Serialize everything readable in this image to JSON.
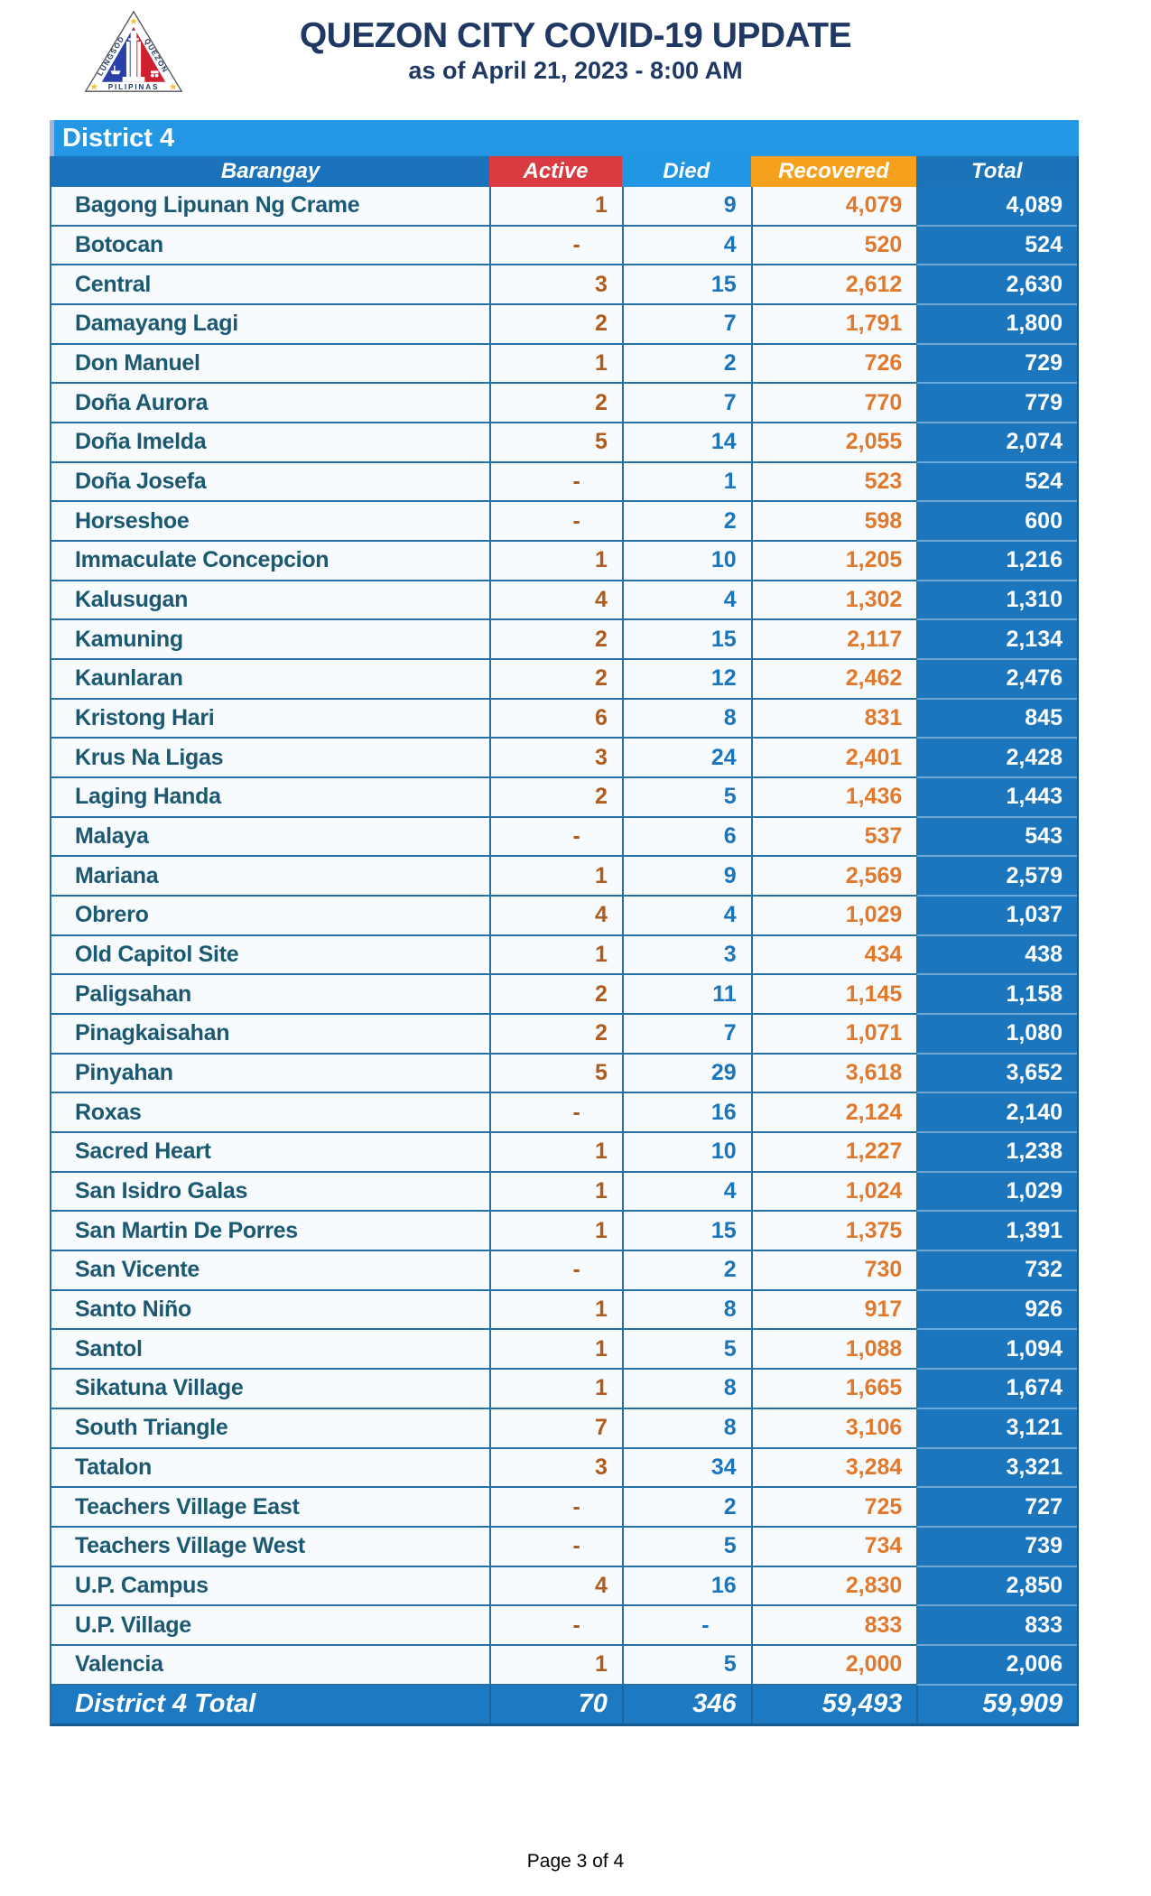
{
  "header": {
    "title": "QUEZON CITY COVID-19 UPDATE",
    "subtitle": "as of April 21, 2023 - 8:00 AM",
    "logo": {
      "name": "quezon-city-seal",
      "text_left": "LUNGSOD",
      "text_right": "QUEZON",
      "text_bottom": "PILIPINAS"
    }
  },
  "colors": {
    "title_navy": "#1F3864",
    "district_bar_blue": "#2397E4",
    "header_blue": "#1B74BB",
    "active_red": "#D93B40",
    "died_blue": "#2196E3",
    "recovered_orange": "#F5A11D",
    "total_blue": "#1C76BE",
    "active_text": "#B05C1E",
    "died_text": "#1B75BC",
    "recovered_text": "#E2782A",
    "barangay_text": "#1B5872"
  },
  "table": {
    "district_label": "District 4",
    "columns": {
      "barangay": "Barangay",
      "active": "Active",
      "died": "Died",
      "recovered": "Recovered",
      "total": "Total"
    },
    "rows": [
      {
        "name": "Bagong Lipunan Ng Crame",
        "active": "1",
        "died": "9",
        "recovered": "4,079",
        "total": "4,089"
      },
      {
        "name": "Botocan",
        "active": "-",
        "died": "4",
        "recovered": "520",
        "total": "524"
      },
      {
        "name": "Central",
        "active": "3",
        "died": "15",
        "recovered": "2,612",
        "total": "2,630"
      },
      {
        "name": "Damayang Lagi",
        "active": "2",
        "died": "7",
        "recovered": "1,791",
        "total": "1,800"
      },
      {
        "name": "Don Manuel",
        "active": "1",
        "died": "2",
        "recovered": "726",
        "total": "729"
      },
      {
        "name": "Doña Aurora",
        "active": "2",
        "died": "7",
        "recovered": "770",
        "total": "779"
      },
      {
        "name": "Doña Imelda",
        "active": "5",
        "died": "14",
        "recovered": "2,055",
        "total": "2,074"
      },
      {
        "name": "Doña Josefa",
        "active": "-",
        "died": "1",
        "recovered": "523",
        "total": "524"
      },
      {
        "name": "Horseshoe",
        "active": "-",
        "died": "2",
        "recovered": "598",
        "total": "600"
      },
      {
        "name": "Immaculate Concepcion",
        "active": "1",
        "died": "10",
        "recovered": "1,205",
        "total": "1,216"
      },
      {
        "name": "Kalusugan",
        "active": "4",
        "died": "4",
        "recovered": "1,302",
        "total": "1,310"
      },
      {
        "name": "Kamuning",
        "active": "2",
        "died": "15",
        "recovered": "2,117",
        "total": "2,134"
      },
      {
        "name": "Kaunlaran",
        "active": "2",
        "died": "12",
        "recovered": "2,462",
        "total": "2,476"
      },
      {
        "name": "Kristong Hari",
        "active": "6",
        "died": "8",
        "recovered": "831",
        "total": "845"
      },
      {
        "name": "Krus Na Ligas",
        "active": "3",
        "died": "24",
        "recovered": "2,401",
        "total": "2,428"
      },
      {
        "name": "Laging Handa",
        "active": "2",
        "died": "5",
        "recovered": "1,436",
        "total": "1,443"
      },
      {
        "name": "Malaya",
        "active": "-",
        "died": "6",
        "recovered": "537",
        "total": "543"
      },
      {
        "name": "Mariana",
        "active": "1",
        "died": "9",
        "recovered": "2,569",
        "total": "2,579"
      },
      {
        "name": "Obrero",
        "active": "4",
        "died": "4",
        "recovered": "1,029",
        "total": "1,037"
      },
      {
        "name": "Old Capitol Site",
        "active": "1",
        "died": "3",
        "recovered": "434",
        "total": "438"
      },
      {
        "name": "Paligsahan",
        "active": "2",
        "died": "11",
        "recovered": "1,145",
        "total": "1,158"
      },
      {
        "name": "Pinagkaisahan",
        "active": "2",
        "died": "7",
        "recovered": "1,071",
        "total": "1,080"
      },
      {
        "name": "Pinyahan",
        "active": "5",
        "died": "29",
        "recovered": "3,618",
        "total": "3,652"
      },
      {
        "name": "Roxas",
        "active": "-",
        "died": "16",
        "recovered": "2,124",
        "total": "2,140"
      },
      {
        "name": "Sacred Heart",
        "active": "1",
        "died": "10",
        "recovered": "1,227",
        "total": "1,238"
      },
      {
        "name": "San Isidro Galas",
        "active": "1",
        "died": "4",
        "recovered": "1,024",
        "total": "1,029"
      },
      {
        "name": "San Martin De Porres",
        "active": "1",
        "died": "15",
        "recovered": "1,375",
        "total": "1,391"
      },
      {
        "name": "San Vicente",
        "active": "-",
        "died": "2",
        "recovered": "730",
        "total": "732"
      },
      {
        "name": "Santo Niño",
        "active": "1",
        "died": "8",
        "recovered": "917",
        "total": "926"
      },
      {
        "name": "Santol",
        "active": "1",
        "died": "5",
        "recovered": "1,088",
        "total": "1,094"
      },
      {
        "name": "Sikatuna Village",
        "active": "1",
        "died": "8",
        "recovered": "1,665",
        "total": "1,674"
      },
      {
        "name": "South Triangle",
        "active": "7",
        "died": "8",
        "recovered": "3,106",
        "total": "3,121"
      },
      {
        "name": "Tatalon",
        "active": "3",
        "died": "34",
        "recovered": "3,284",
        "total": "3,321"
      },
      {
        "name": "Teachers Village East",
        "active": "-",
        "died": "2",
        "recovered": "725",
        "total": "727"
      },
      {
        "name": "Teachers Village West",
        "active": "-",
        "died": "5",
        "recovered": "734",
        "total": "739"
      },
      {
        "name": "U.P. Campus",
        "active": "4",
        "died": "16",
        "recovered": "2,830",
        "total": "2,850"
      },
      {
        "name": "U.P. Village",
        "active": "-",
        "died": "-",
        "recovered": "833",
        "total": "833"
      },
      {
        "name": "Valencia",
        "active": "1",
        "died": "5",
        "recovered": "2,000",
        "total": "2,006"
      }
    ],
    "total_row": {
      "label": "District 4 Total",
      "active": "70",
      "died": "346",
      "recovered": "59,493",
      "total": "59,909"
    }
  },
  "footer": {
    "page_label": "Page 3 of 4"
  }
}
